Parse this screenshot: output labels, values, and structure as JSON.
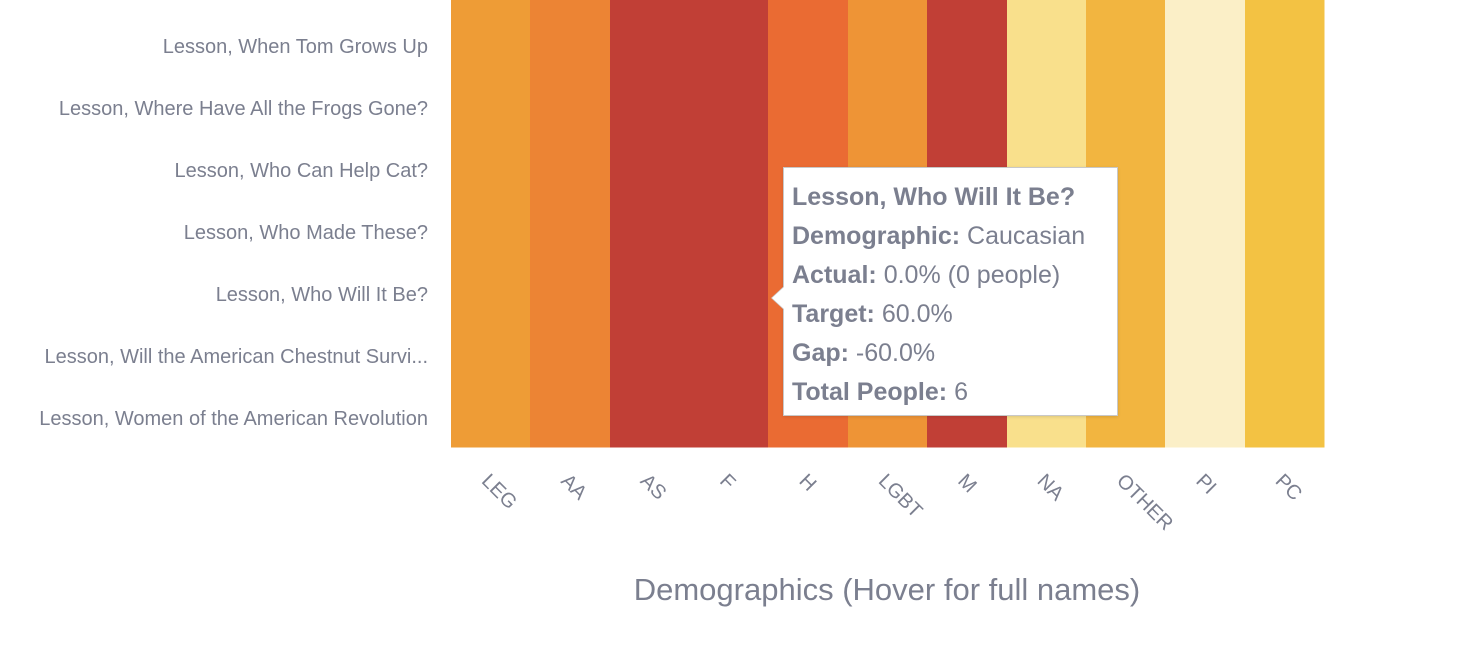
{
  "chart_data": {
    "type": "heatmap",
    "xlabel": "Demographics (Hover for full names)",
    "rows": [
      "Lesson, When Tom Grows Up",
      "Lesson, Where Have All the Frogs Gone?",
      "Lesson, Who Can Help Cat?",
      "Lesson, Who Made These?",
      "Lesson, Who Will It Be?",
      "Lesson, Will the American Chestnut Survi...",
      "Lesson, Women of the American Revolution"
    ],
    "columns": [
      "LEG",
      "AA",
      "AS",
      "F",
      "H",
      "LGBT",
      "M",
      "NA",
      "OTHER",
      "PI",
      "PC"
    ],
    "column_colors": [
      "#ee9c36",
      "#ec8434",
      "#c13f36",
      "#c13f36",
      "#ea6b33",
      "#ee9436",
      "#c13f36",
      "#f9e08c",
      "#f2b540",
      "#fbefc7",
      "#f3c243"
    ],
    "tooltip": {
      "title": "Lesson, Who Will It Be?",
      "demographic_label": "Demographic:",
      "demographic_value": "Caucasian",
      "actual_label": "Actual:",
      "actual_value": "0.0% (0 people)",
      "target_label": "Target:",
      "target_value": "60.0%",
      "gap_label": "Gap:",
      "gap_value": "-60.0%",
      "total_label": "Total People:",
      "total_value": "6"
    }
  }
}
